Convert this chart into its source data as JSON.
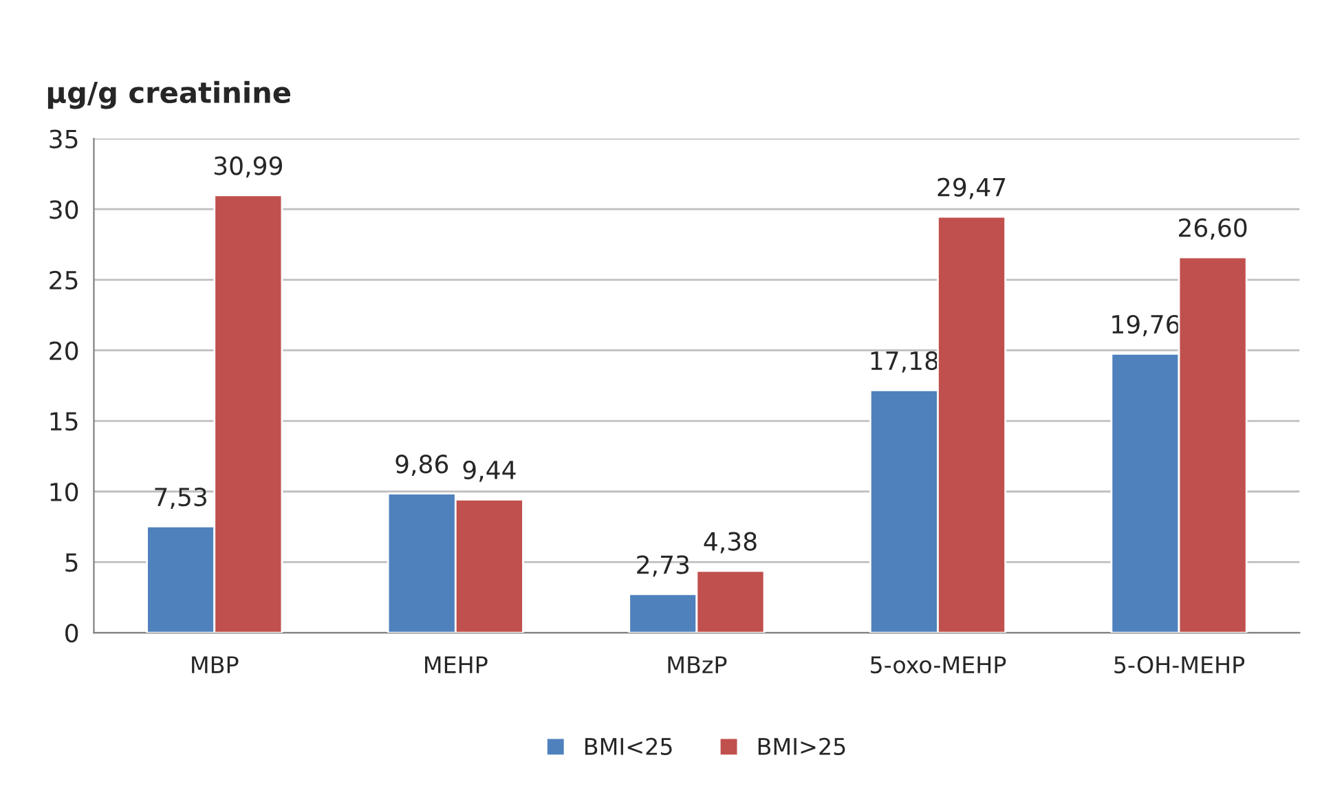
{
  "chart_data": {
    "type": "bar",
    "ylabel": "µg/g creatinine",
    "categories": [
      "MBP",
      "MEHP",
      "MBzP",
      "5-oxo-MEHP",
      "5-OH-MEHP"
    ],
    "series": [
      {
        "name": "BMI<25",
        "color": "#4f81bd",
        "values": [
          7.53,
          9.86,
          2.73,
          17.18,
          19.76
        ],
        "value_labels": [
          "7,53",
          "9,86",
          "2,73",
          "17,18",
          "19,76"
        ]
      },
      {
        "name": "BMI>25",
        "color": "#c0504d",
        "values": [
          30.99,
          9.44,
          4.38,
          29.47,
          26.6
        ],
        "value_labels": [
          "30,99",
          "9,44",
          "4,38",
          "29,47",
          "26,60"
        ]
      }
    ],
    "ylim": [
      0,
      35
    ],
    "yticks": [
      0,
      5,
      10,
      15,
      20,
      25,
      30,
      35
    ],
    "grid": "y",
    "legend": "bottom"
  }
}
